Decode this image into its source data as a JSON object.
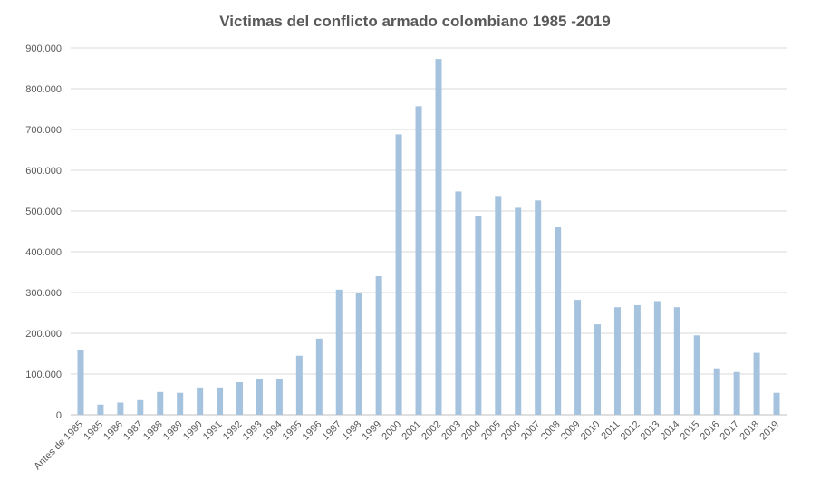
{
  "chart_data": {
    "type": "bar",
    "title": "Victimas del conflicto armado colombiano 1985 -2019",
    "xlabel": "",
    "ylabel": "",
    "ylim": [
      0,
      900000
    ],
    "yticks": [
      0,
      100000,
      200000,
      300000,
      400000,
      500000,
      600000,
      700000,
      800000,
      900000
    ],
    "ytick_labels": [
      "0",
      "100.000",
      "200.000",
      "300.000",
      "400.000",
      "500.000",
      "600.000",
      "700.000",
      "800.000",
      "900.000"
    ],
    "grid": true,
    "legend": "none",
    "bar_color": "#a5c3df",
    "categories": [
      "Antes de 1985",
      "1985",
      "1986",
      "1987",
      "1988",
      "1989",
      "1990",
      "1991",
      "1992",
      "1993",
      "1994",
      "1995",
      "1996",
      "1997",
      "1998",
      "1999",
      "2000",
      "2001",
      "2002",
      "2003",
      "2004",
      "2005",
      "2006",
      "2007",
      "2008",
      "2009",
      "2010",
      "2011",
      "2012",
      "2013",
      "2014",
      "2015",
      "2016",
      "2017",
      "2018",
      "2019"
    ],
    "values": [
      158000,
      25000,
      30000,
      36000,
      56000,
      54000,
      67000,
      67000,
      80000,
      87000,
      89000,
      145000,
      187000,
      307000,
      298000,
      340000,
      688000,
      757000,
      873000,
      548000,
      488000,
      537000,
      508000,
      526000,
      460000,
      282000,
      222000,
      264000,
      269000,
      279000,
      264000,
      195000,
      114000,
      105000,
      152000,
      54000
    ]
  }
}
